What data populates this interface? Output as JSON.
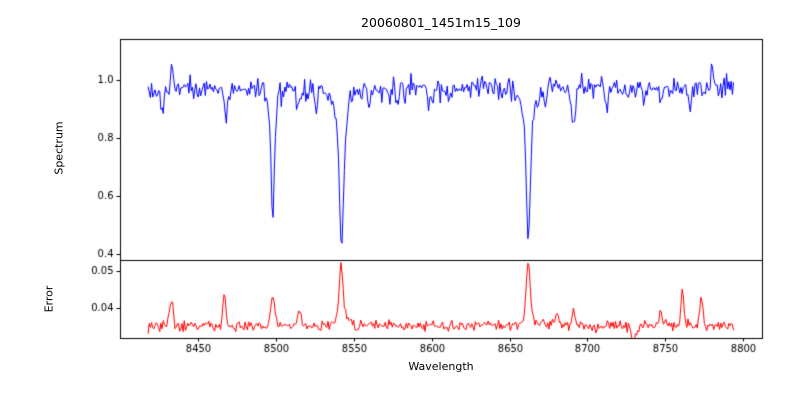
{
  "figure": {
    "title": "20060801_1451m15_109",
    "background": "#ffffff",
    "axes_color": "#000000",
    "tick_label_color": "#000000"
  },
  "chart_data": [
    {
      "panel": "spectrum",
      "type": "line",
      "line_color": "#0000ff",
      "ylabel": "Spectrum",
      "ytick_labels": [
        "1.0",
        "0.8",
        "0.6",
        "0.4"
      ],
      "ytick_values": [
        1.0,
        0.8,
        0.6,
        0.4
      ],
      "ylim": [
        0.38,
        1.14
      ],
      "xlim": [
        8400,
        8812
      ],
      "x_start": 8418,
      "x_end": 8794,
      "x_step": 0.75,
      "continuum": 0.97,
      "noise_sigma": 0.018,
      "noise_seed": 1234567,
      "absorption_lines": [
        {
          "center": 8498.0,
          "depth": 0.39,
          "width": 1.1
        },
        {
          "center": 8498.0,
          "depth": 0.05,
          "width": 3.5
        },
        {
          "center": 8542.1,
          "depth": 0.45,
          "width": 1.4
        },
        {
          "center": 8542.1,
          "depth": 0.1,
          "width": 4.5
        },
        {
          "center": 8662.1,
          "depth": 0.43,
          "width": 1.3
        },
        {
          "center": 8662.1,
          "depth": 0.095,
          "width": 4.2
        },
        {
          "center": 8427.0,
          "depth": 0.085,
          "width": 0.9
        },
        {
          "center": 8433.5,
          "depth": -0.09,
          "width": 0.7
        },
        {
          "center": 8468.0,
          "depth": 0.1,
          "width": 1.0
        },
        {
          "center": 8514.0,
          "depth": 0.08,
          "width": 1.0
        },
        {
          "center": 8526.0,
          "depth": 0.065,
          "width": 0.9
        },
        {
          "center": 8560.0,
          "depth": 0.06,
          "width": 0.9
        },
        {
          "center": 8578.0,
          "depth": 0.06,
          "width": 0.9
        },
        {
          "center": 8598.0,
          "depth": 0.055,
          "width": 0.9
        },
        {
          "center": 8611.0,
          "depth": 0.05,
          "width": 0.9
        },
        {
          "center": 8673.0,
          "depth": 0.06,
          "width": 0.9
        },
        {
          "center": 8691.0,
          "depth": 0.13,
          "width": 1.2
        },
        {
          "center": 8713.0,
          "depth": 0.05,
          "width": 0.9
        },
        {
          "center": 8736.0,
          "depth": 0.05,
          "width": 0.9
        },
        {
          "center": 8747.0,
          "depth": 0.065,
          "width": 1.0
        },
        {
          "center": 8766.0,
          "depth": 0.08,
          "width": 0.9
        },
        {
          "center": 8780.0,
          "depth": -0.1,
          "width": 0.8
        }
      ],
      "key_features": {
        "continuum_level": 0.97,
        "ca_ii_triplet_minima": [
          {
            "wavelength": 8498,
            "flux": 0.53
          },
          {
            "wavelength": 8542,
            "flux": 0.42
          },
          {
            "wavelength": 8662,
            "flux": 0.445
          }
        ],
        "max_spike": {
          "wavelength": 8780,
          "flux": 1.09
        }
      }
    },
    {
      "panel": "error",
      "type": "line",
      "line_color": "#ff0000",
      "ylabel": "Error",
      "xlabel": "Wavelength",
      "ytick_labels": [
        "0.05",
        "0.04"
      ],
      "ytick_values": [
        0.05,
        0.04
      ],
      "ylim": [
        0.032,
        0.053
      ],
      "xlim": [
        8400,
        8812
      ],
      "xtick_values": [
        8450,
        8500,
        8550,
        8600,
        8650,
        8700,
        8750,
        8800
      ],
      "xtick_labels": [
        "8450",
        "8500",
        "8550",
        "8600",
        "8650",
        "8700",
        "8750",
        "8800"
      ],
      "x_start": 8418,
      "x_end": 8794,
      "x_step": 0.75,
      "baseline": 0.0353,
      "noise_sigma": 0.0007,
      "noise_seed": 987654,
      "peaks": [
        {
          "center": 8433,
          "amp": 0.006,
          "width": 1.2
        },
        {
          "center": 8467,
          "amp": 0.0085,
          "width": 1.0
        },
        {
          "center": 8498,
          "amp": 0.0085,
          "width": 1.2
        },
        {
          "center": 8515,
          "amp": 0.0045,
          "width": 1.0
        },
        {
          "center": 8542,
          "amp": 0.014,
          "width": 1.3
        },
        {
          "center": 8542,
          "amp": 0.002,
          "width": 4.0
        },
        {
          "center": 8662,
          "amp": 0.015,
          "width": 1.2
        },
        {
          "center": 8662,
          "amp": 0.002,
          "width": 4.0
        },
        {
          "center": 8680,
          "amp": 0.003,
          "width": 1.5
        },
        {
          "center": 8691,
          "amp": 0.004,
          "width": 1.0
        },
        {
          "center": 8730,
          "amp": -0.0035,
          "width": 1.5
        },
        {
          "center": 8747,
          "amp": 0.0035,
          "width": 1.0
        },
        {
          "center": 8761,
          "amp": 0.0085,
          "width": 1.0
        },
        {
          "center": 8773,
          "amp": 0.0075,
          "width": 1.0
        }
      ],
      "key_features": {
        "baseline_level": 0.035,
        "max_peaks": [
          {
            "wavelength": 8542,
            "error": 0.0515
          },
          {
            "wavelength": 8662,
            "error": 0.0528
          }
        ]
      }
    }
  ]
}
